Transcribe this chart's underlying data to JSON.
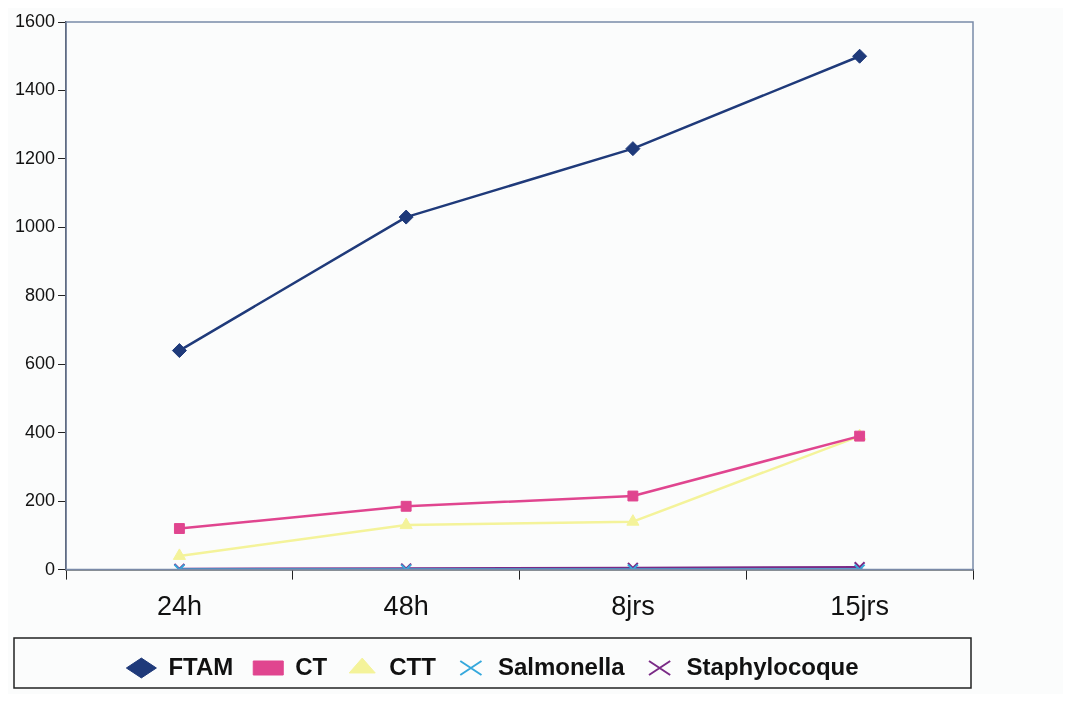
{
  "chart_data": {
    "type": "line",
    "categories": [
      "24h",
      "48h",
      "8jrs",
      "15jrs"
    ],
    "series": [
      {
        "name": "FTAM",
        "color": "#1f3a7a",
        "marker": "diamond",
        "values": [
          640,
          1030,
          1230,
          1500
        ]
      },
      {
        "name": "CT",
        "color": "#e0458f",
        "marker": "square",
        "values": [
          120,
          185,
          215,
          390
        ]
      },
      {
        "name": "CTT",
        "color": "#f4f39a",
        "marker": "triangle",
        "values": [
          40,
          130,
          140,
          390
        ]
      },
      {
        "name": "Salmonella",
        "color": "#35a8dc",
        "marker": "cross",
        "values": [
          0,
          0,
          0,
          0
        ]
      },
      {
        "name": "Staphylocoque",
        "color": "#7a2a86",
        "marker": "cross",
        "values": [
          2,
          3,
          5,
          7
        ]
      }
    ],
    "ylim": [
      0,
      1600
    ],
    "yticks": [
      0,
      200,
      400,
      600,
      800,
      1000,
      1200,
      1400,
      1600
    ],
    "grid": false,
    "legend": "bottom",
    "line_style": "solid"
  }
}
